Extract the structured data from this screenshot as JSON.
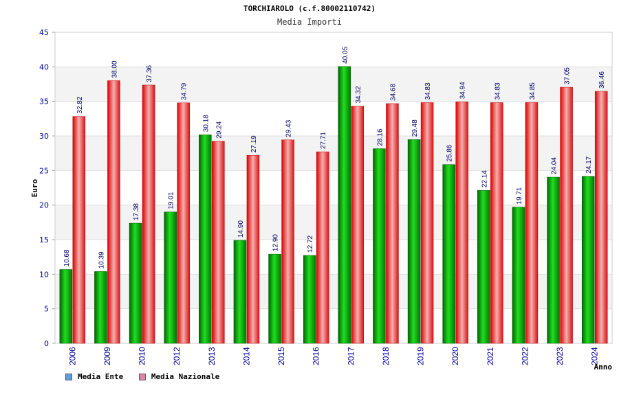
{
  "chart_data": {
    "type": "bar",
    "title": "TORCHIAROLO (c.f.80002110742)",
    "subtitle": "Media Importi",
    "ylabel": "Euro",
    "xlabel": "Anno",
    "ylim": [
      0,
      45
    ],
    "yticks": [
      0,
      5,
      10,
      15,
      20,
      25,
      30,
      35,
      40,
      45
    ],
    "grid": true,
    "legend_position": "bottom-left",
    "categories": [
      "2006",
      "2009",
      "2010",
      "2012",
      "2013",
      "2014",
      "2015",
      "2016",
      "2017",
      "2018",
      "2019",
      "2020",
      "2021",
      "2022",
      "2023",
      "2024"
    ],
    "series": [
      {
        "name": "Media Ente",
        "color": "#00aa00",
        "legend_color": "#5aa0e6",
        "values": [
          10.68,
          10.39,
          17.38,
          19.01,
          30.18,
          14.9,
          12.9,
          12.72,
          40.05,
          28.16,
          29.48,
          25.86,
          22.14,
          19.71,
          24.04,
          24.17
        ],
        "labels": [
          "10.68",
          "10.39",
          "17.38",
          "19.01",
          "30.18",
          "14.90",
          "12.90",
          "12.72",
          "40.05",
          "28.16",
          "29.48",
          "25.86",
          "22.14",
          "19.71",
          "24.04",
          "24.17"
        ]
      },
      {
        "name": "Media Nazionale",
        "color": "#ee2222",
        "legend_color": "#dd88aa",
        "values": [
          32.82,
          38.0,
          37.36,
          34.79,
          29.24,
          27.19,
          29.43,
          27.71,
          34.32,
          34.68,
          34.83,
          34.94,
          34.83,
          34.85,
          37.05,
          36.46
        ],
        "labels": [
          "32.82",
          "38.00",
          "37.36",
          "34.79",
          "29.24",
          "27.19",
          "29.43",
          "27.71",
          "34.32",
          "34.68",
          "34.83",
          "34.94",
          "34.83",
          "34.85",
          "37.05",
          "36.46"
        ]
      }
    ]
  }
}
